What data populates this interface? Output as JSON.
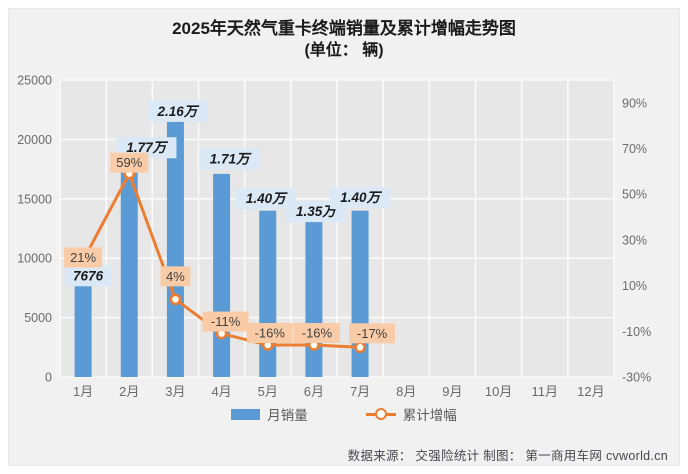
{
  "title": "2025年天然气重卡终端销量及累计增幅走势图",
  "subtitle": "(单位： 辆)",
  "footer": "数据来源： 交强险统计 制图： 第一商用车网 cvworld.cn",
  "colors": {
    "bar": "#5B9BD5",
    "line": "#ED7D31",
    "marker_fill": "#ffffff",
    "value_label_bg": "#dbe9f6",
    "pct_label_bg": "#f9cca7",
    "value_label_text": "#1b1b1b",
    "pct_label_text": "#404040",
    "plot_bg": "#e7e7e7",
    "grid": "#fafafa",
    "axis_text": "#6b6b6b",
    "figure_bg": "#f1f1f1"
  },
  "chart_data": {
    "type": "combo",
    "title": "2025年天然气重卡终端销量及累计增幅走势图",
    "subtitle": "(单位： 辆)",
    "categories": [
      "1月",
      "2月",
      "3月",
      "4月",
      "5月",
      "6月",
      "7月",
      "8月",
      "9月",
      "10月",
      "11月",
      "12月"
    ],
    "series": [
      {
        "name": "月销量",
        "type": "bar",
        "values": [
          7676,
          17700,
          21600,
          17100,
          14000,
          13500,
          14000
        ],
        "labels": [
          "7676",
          "1.77万",
          "2.16万",
          "1.71万",
          "1.40万",
          "1.35万",
          "1.40万"
        ]
      },
      {
        "name": "累计增幅",
        "type": "line",
        "values": [
          21,
          59,
          4,
          -11,
          -16,
          -16,
          -17
        ],
        "labels": [
          "21%",
          "59%",
          "4%",
          "-11%",
          "-16%",
          "-16%",
          "-17%"
        ]
      }
    ],
    "left_axis": {
      "min": 0,
      "max": 25000,
      "step": 5000,
      "ticks": [
        0,
        5000,
        10000,
        15000,
        20000,
        25000
      ]
    },
    "right_axis": {
      "min": -30,
      "max": 100,
      "tick_values": [
        90,
        70,
        50,
        30,
        10,
        -10,
        -30
      ],
      "tick_labels": [
        "90%",
        "70%",
        "50%",
        "30%",
        "10%",
        "-10%",
        "-30%"
      ]
    },
    "legend": [
      "月销量",
      "累计增幅"
    ],
    "grid": true,
    "legend_position": "bottom"
  }
}
